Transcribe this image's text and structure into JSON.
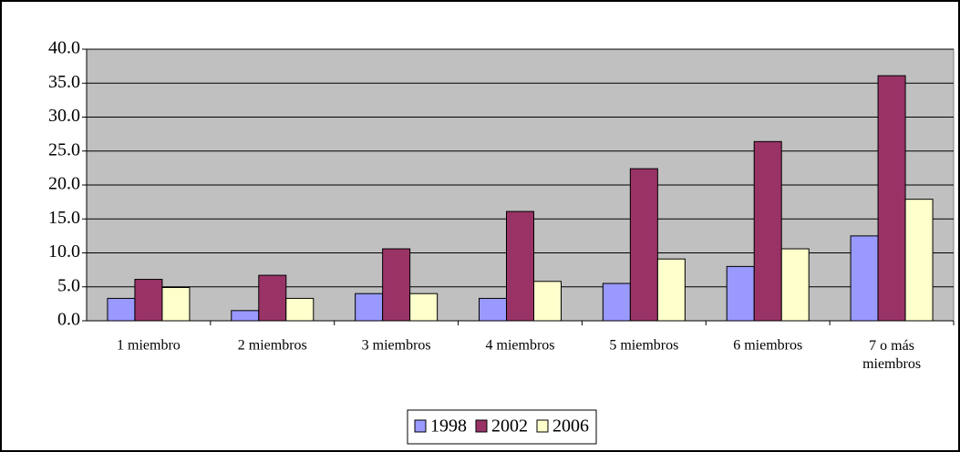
{
  "chart_data": {
    "type": "bar",
    "categories": [
      "1 miembro",
      "2 miembros",
      "3 miembros",
      "4 miembros",
      "5 miembros",
      "6 miembros",
      "7 o más miembros"
    ],
    "series": [
      {
        "name": "1998",
        "color": "#9999ff",
        "values": [
          3.3,
          1.5,
          4.0,
          3.3,
          5.5,
          8.0,
          12.5
        ]
      },
      {
        "name": "2002",
        "color": "#993366",
        "values": [
          6.1,
          6.7,
          10.6,
          16.1,
          22.4,
          26.4,
          36.1
        ]
      },
      {
        "name": "2006",
        "color": "#ffffcc",
        "values": [
          4.9,
          3.3,
          4.0,
          5.8,
          9.1,
          10.6,
          17.9
        ]
      }
    ],
    "ylim": [
      0,
      40
    ],
    "yticks": [
      {
        "value": 0,
        "label": "0.0"
      },
      {
        "value": 5,
        "label": "5.0"
      },
      {
        "value": 10,
        "label": "10.0"
      },
      {
        "value": 15,
        "label": "15.0"
      },
      {
        "value": 20,
        "label": "20.0"
      },
      {
        "value": 25,
        "label": "25.0"
      },
      {
        "value": 30,
        "label": "30.0"
      },
      {
        "value": 35,
        "label": "35.0"
      },
      {
        "value": 40,
        "label": "40.0"
      }
    ],
    "grid": true,
    "legend": "bottom"
  }
}
